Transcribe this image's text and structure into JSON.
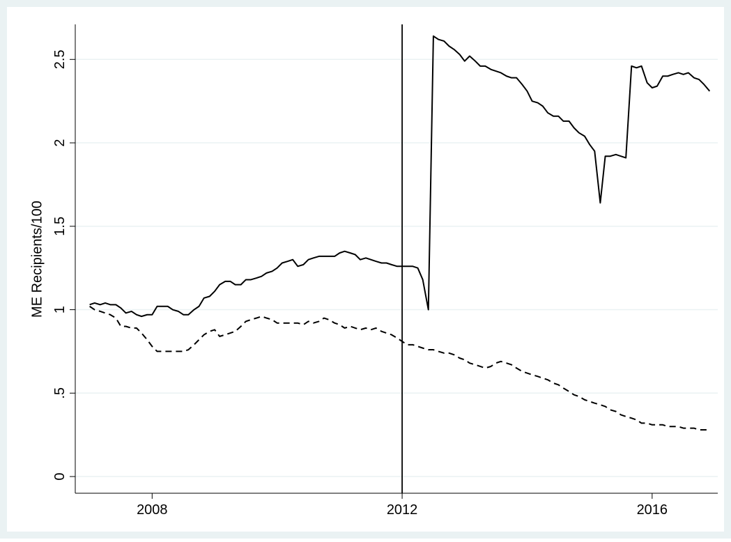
{
  "chart_data": {
    "type": "line",
    "ylabel": "ME Recipients/100",
    "x": [
      2007,
      2007.08,
      2007.17,
      2007.25,
      2007.33,
      2007.42,
      2007.5,
      2007.58,
      2007.67,
      2007.75,
      2007.83,
      2007.92,
      2008,
      2008.08,
      2008.17,
      2008.25,
      2008.33,
      2008.42,
      2008.5,
      2008.58,
      2008.67,
      2008.75,
      2008.83,
      2008.92,
      2009,
      2009.08,
      2009.17,
      2009.25,
      2009.33,
      2009.42,
      2009.5,
      2009.58,
      2009.67,
      2009.75,
      2009.83,
      2009.92,
      2010,
      2010.08,
      2010.17,
      2010.25,
      2010.33,
      2010.42,
      2010.5,
      2010.58,
      2010.67,
      2010.75,
      2010.83,
      2010.92,
      2011,
      2011.08,
      2011.17,
      2011.25,
      2011.33,
      2011.42,
      2011.5,
      2011.58,
      2011.67,
      2011.75,
      2011.83,
      2011.92,
      2012,
      2012.08,
      2012.17,
      2012.25,
      2012.33,
      2012.42,
      2012.5,
      2012.58,
      2012.67,
      2012.75,
      2012.83,
      2012.92,
      2013,
      2013.08,
      2013.17,
      2013.25,
      2013.33,
      2013.42,
      2013.5,
      2013.58,
      2013.67,
      2013.75,
      2013.83,
      2013.92,
      2014,
      2014.08,
      2014.17,
      2014.25,
      2014.33,
      2014.42,
      2014.5,
      2014.58,
      2014.67,
      2014.75,
      2014.83,
      2014.92,
      2015,
      2015.08,
      2015.17,
      2015.25,
      2015.33,
      2015.42,
      2015.5,
      2015.58,
      2015.67,
      2015.75,
      2015.83,
      2015.92,
      2016,
      2016.08,
      2016.17,
      2016.25,
      2016.33,
      2016.42,
      2016.5,
      2016.58,
      2016.67,
      2016.75,
      2016.83,
      2016.92
    ],
    "series": [
      {
        "color": "#000000",
        "style": "solid",
        "values": [
          1.03,
          1.04,
          1.03,
          1.04,
          1.03,
          1.03,
          1.01,
          0.98,
          0.99,
          0.97,
          0.96,
          0.97,
          0.97,
          1.02,
          1.02,
          1.02,
          1.0,
          0.99,
          0.97,
          0.97,
          1.0,
          1.02,
          1.07,
          1.08,
          1.11,
          1.15,
          1.17,
          1.17,
          1.15,
          1.15,
          1.18,
          1.18,
          1.19,
          1.2,
          1.22,
          1.23,
          1.25,
          1.28,
          1.29,
          1.3,
          1.26,
          1.27,
          1.3,
          1.31,
          1.32,
          1.32,
          1.32,
          1.32,
          1.34,
          1.35,
          1.34,
          1.33,
          1.3,
          1.31,
          1.3,
          1.29,
          1.28,
          1.28,
          1.27,
          1.26,
          1.26,
          1.26,
          1.26,
          1.25,
          1.18,
          1.0,
          2.64,
          2.62,
          2.61,
          2.58,
          2.56,
          2.53,
          2.49,
          2.52,
          2.49,
          2.46,
          2.46,
          2.44,
          2.43,
          2.42,
          2.4,
          2.39,
          2.39,
          2.35,
          2.31,
          2.25,
          2.24,
          2.22,
          2.18,
          2.16,
          2.16,
          2.13,
          2.13,
          2.09,
          2.06,
          2.04,
          1.99,
          1.95,
          1.64,
          1.92,
          1.92,
          1.93,
          1.92,
          1.91,
          2.46,
          2.45,
          2.46,
          2.36,
          2.33,
          2.34,
          2.4,
          2.4,
          2.41,
          2.42,
          2.41,
          2.42,
          2.39,
          2.38,
          2.35,
          2.31
        ]
      },
      {
        "color": "#000000",
        "style": "dashed",
        "values": [
          1.02,
          1.0,
          0.99,
          0.98,
          0.97,
          0.95,
          0.9,
          0.9,
          0.89,
          0.89,
          0.86,
          0.82,
          0.78,
          0.75,
          0.75,
          0.75,
          0.75,
          0.75,
          0.75,
          0.76,
          0.79,
          0.82,
          0.85,
          0.87,
          0.88,
          0.84,
          0.85,
          0.86,
          0.87,
          0.9,
          0.93,
          0.94,
          0.95,
          0.96,
          0.95,
          0.94,
          0.92,
          0.92,
          0.92,
          0.92,
          0.92,
          0.91,
          0.93,
          0.92,
          0.93,
          0.95,
          0.94,
          0.92,
          0.91,
          0.89,
          0.9,
          0.89,
          0.88,
          0.89,
          0.88,
          0.89,
          0.87,
          0.86,
          0.85,
          0.83,
          0.81,
          0.79,
          0.79,
          0.78,
          0.77,
          0.76,
          0.76,
          0.75,
          0.74,
          0.74,
          0.73,
          0.71,
          0.7,
          0.68,
          0.67,
          0.66,
          0.65,
          0.66,
          0.68,
          0.69,
          0.68,
          0.67,
          0.65,
          0.63,
          0.62,
          0.61,
          0.6,
          0.59,
          0.58,
          0.56,
          0.55,
          0.53,
          0.51,
          0.49,
          0.48,
          0.46,
          0.45,
          0.44,
          0.43,
          0.42,
          0.4,
          0.39,
          0.37,
          0.36,
          0.35,
          0.34,
          0.32,
          0.32,
          0.31,
          0.31,
          0.31,
          0.3,
          0.3,
          0.3,
          0.29,
          0.29,
          0.29,
          0.28,
          0.28,
          0.28
        ]
      }
    ],
    "xlim": [
      2006.77,
      2017.05
    ],
    "xticks": [
      2008,
      2012,
      2016
    ],
    "ylim": [
      -0.1,
      2.71
    ],
    "yticks": [
      0,
      {
        "value": 0.5,
        "label": ".5"
      },
      1,
      1.5,
      2,
      2.5
    ],
    "grid": true,
    "xline": 2012
  }
}
